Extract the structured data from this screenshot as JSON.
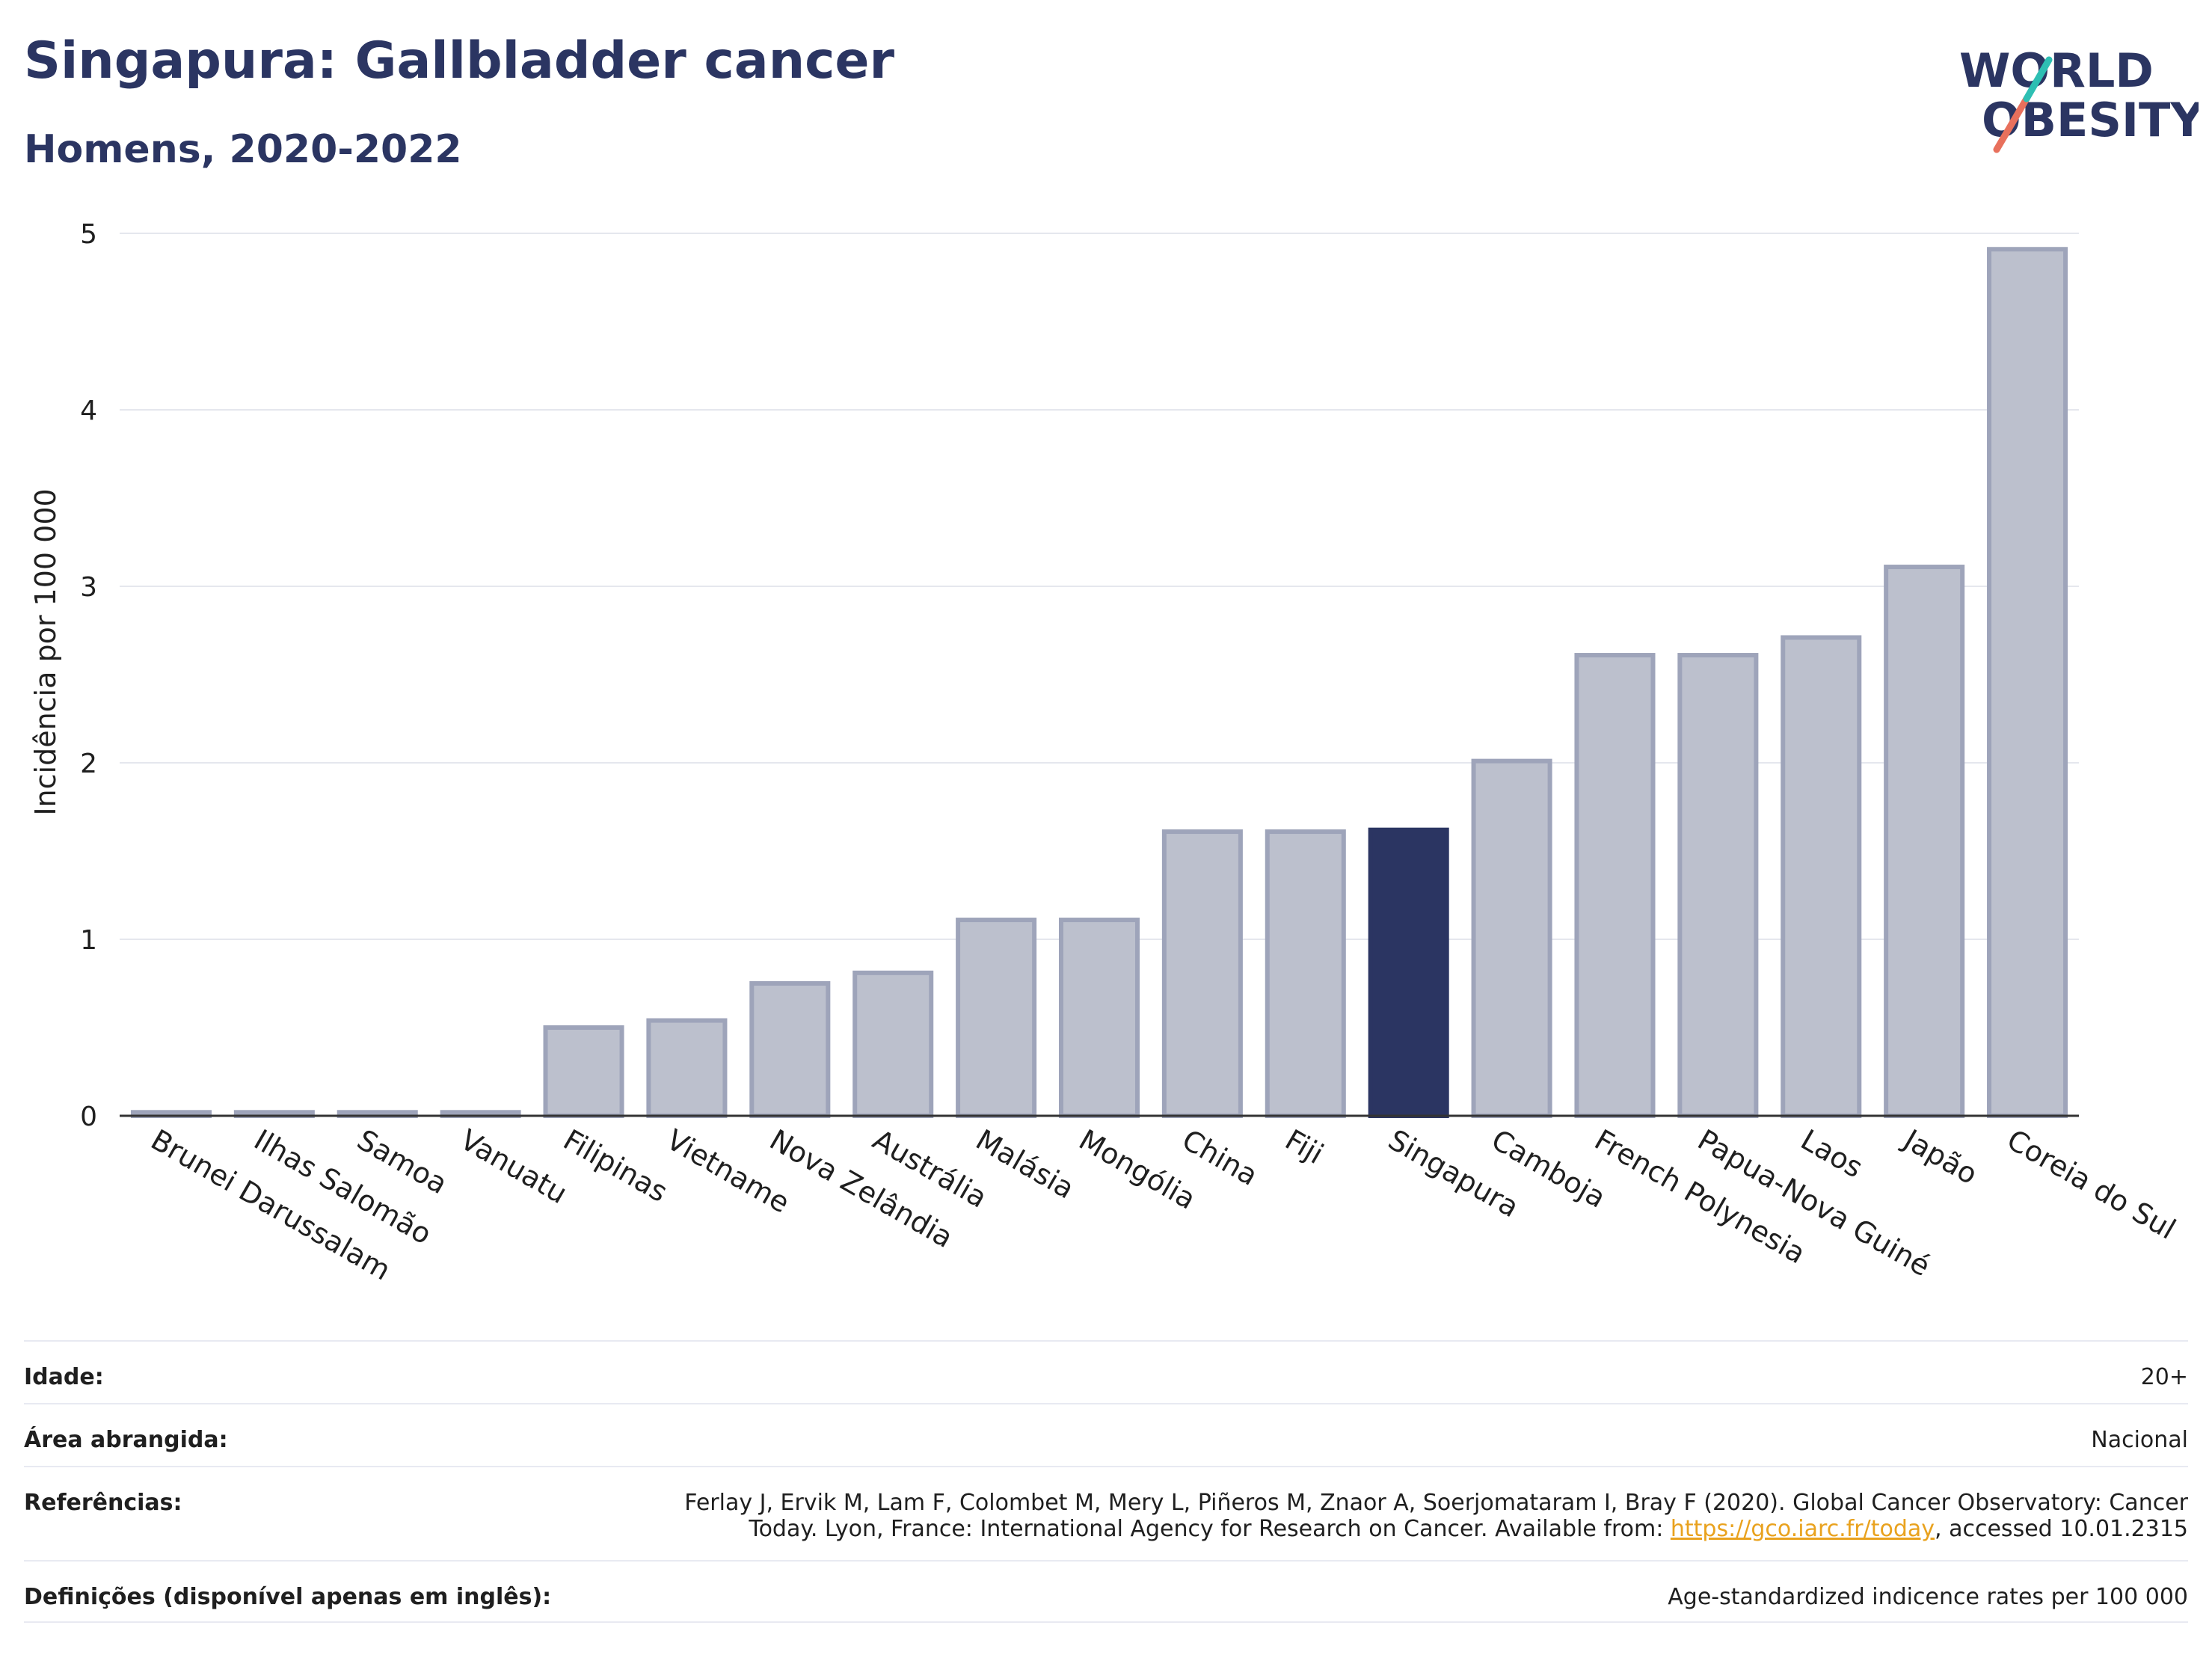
{
  "header": {
    "title": "Singapura: Gallbladder cancer",
    "subtitle": "Homens, 2020-2022"
  },
  "logo": {
    "line1": "WORLD",
    "line2": "OBESITY"
  },
  "colors": {
    "bar": "#bcc0cd",
    "bar_border": "#9ea4ba",
    "highlight": "#2b3562",
    "grid": "#e5e7ee",
    "title": "#2b3562"
  },
  "chart_data": {
    "type": "bar",
    "ylabel": "Incidência por 100 000",
    "ylim": [
      0,
      5
    ],
    "yticks": [
      0,
      1,
      2,
      3,
      4,
      5
    ],
    "categories": [
      "Brunei Darussalam",
      "Ilhas Salomão",
      "Samoa",
      "Vanuatu",
      "Filipinas",
      "Vietname",
      "Nova Zelândia",
      "Austrália",
      "Malásia",
      "Mongólia",
      "China",
      "Fiji",
      "Singapura",
      "Camboja",
      "French Polynesia",
      "Papua-Nova Guiné",
      "Laos",
      "Japão",
      "Coreia do Sul"
    ],
    "values": [
      0.02,
      0.02,
      0.02,
      0.02,
      0.5,
      0.54,
      0.75,
      0.81,
      1.11,
      1.11,
      1.61,
      1.61,
      1.62,
      2.01,
      2.61,
      2.61,
      2.71,
      3.11,
      4.91
    ],
    "highlight": "Singapura",
    "grid": true
  },
  "meta": {
    "idade_label": "Idade:",
    "idade_value": "20+",
    "area_label": "Área abrangida:",
    "area_value": "Nacional",
    "ref_label": "Referências:",
    "ref_line1": "Ferlay J, Ervik M, Lam F, Colombet M, Mery L, Piñeros M, Znaor A, Soerjomataram I, Bray F (2020). Global Cancer Observatory: Cancer",
    "ref_line2_pre": "Today. Lyon, France: International Agency for Research on Cancer. Available from: ",
    "ref_link": "https://gco.iarc.fr/today",
    "ref_line2_post": ", accessed 10.01.2315",
    "def_label": "Definições (disponível apenas em inglês):",
    "def_value": "Age-standardized indicence rates per 100 000"
  }
}
